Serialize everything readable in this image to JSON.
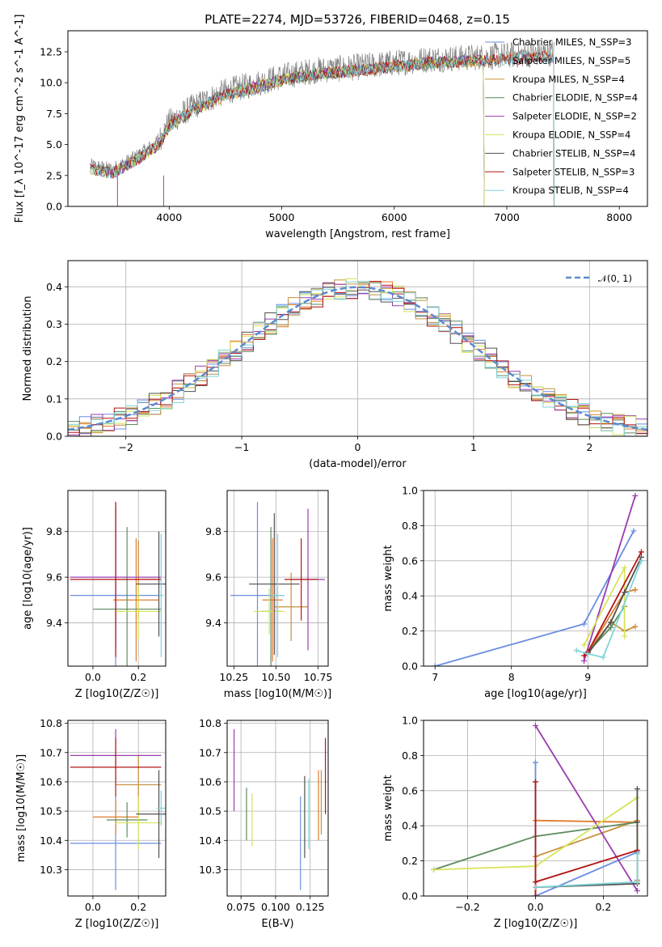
{
  "title": "PLATE=2274, MJD=53726, FIBERID=0468, z=0.15",
  "colors": [
    "#6a8ee0",
    "#e07c2e",
    "#c68f3a",
    "#5e8a5e",
    "#9b3bb0",
    "#d7e35a",
    "#505050",
    "#b41414",
    "#7fd3d6"
  ],
  "legend_labels": [
    "Chabrier MILES, N_SSP=3",
    "Salpeter MILES, N_SSP=5",
    "Kroupa MILES, N_SSP=4",
    "Chabrier ELODIE, N_SSP=4",
    "Salpeter ELODIE, N_SSP=2",
    "Kroupa ELODIE, N_SSP=4",
    "Chabrier STELIB, N_SSP=4",
    "Salpeter STELIB, N_SSP=3",
    "Kroupa STELIB, N_SSP=4"
  ],
  "chart_data": [
    {
      "id": "spectrum",
      "type": "line",
      "xlabel": "wavelength [Angstrom, rest frame]",
      "ylabel": "Flux [f_λ 10^-17 erg cm^-2 s^-1 A^-1]",
      "xlim": [
        3100,
        8250
      ],
      "ylim": [
        0,
        14.2
      ],
      "xticks": [
        4000,
        5000,
        6000,
        7000,
        8000
      ],
      "yticks": [
        0.0,
        2.5,
        5.0,
        7.5,
        10.0,
        12.5
      ],
      "xticklabels": [
        "4000",
        "5000",
        "6000",
        "7000",
        "8000"
      ],
      "yticklabels": [
        "0.0",
        "2.5",
        "5.0",
        "7.5",
        "10.0",
        "12.5"
      ],
      "grid": false,
      "legend": "top-right",
      "data_series": {
        "name": "data",
        "x_range": [
          3300,
          7420
        ],
        "color": "#808080"
      },
      "continuum": {
        "x": [
          3300,
          3500,
          3700,
          3900,
          4000,
          4200,
          4500,
          4800,
          5000,
          5300,
          5600,
          6000,
          6300,
          6600,
          7000,
          7400
        ],
        "y": [
          3.3,
          3.0,
          4.0,
          5.2,
          6.8,
          8.0,
          9.3,
          10.0,
          10.5,
          11.0,
          11.2,
          11.6,
          11.9,
          12.0,
          12.2,
          12.4
        ]
      },
      "model_cutoffs": [
        7420,
        7420,
        6800,
        6800,
        6800,
        6800,
        7420,
        7420,
        7420
      ]
    },
    {
      "id": "residuals",
      "type": "step",
      "xlabel": "(data-model)/error",
      "ylabel": "Normed distribution",
      "xlim": [
        -2.5,
        2.5
      ],
      "ylim": [
        0,
        0.47
      ],
      "xticks": [
        -2,
        -1,
        0,
        1,
        2
      ],
      "yticks": [
        0.0,
        0.1,
        0.2,
        0.3,
        0.4
      ],
      "xticklabels": [
        "−2",
        "−1",
        "0",
        "1",
        "2"
      ],
      "yticklabels": [
        "0.0",
        "0.1",
        "0.2",
        "0.3",
        "0.4"
      ],
      "grid": true,
      "legend": "top-right",
      "reference_label": "𝒩(0, 1)",
      "reference_color": "#5b8ad0",
      "bin_width": 0.1
    },
    {
      "id": "age-vs-Z",
      "type": "errorbar",
      "xlabel": "Z [log10(Z/Z☉)]",
      "ylabel": "age [log10(age/yr)]",
      "xlim": [
        -0.11,
        0.32
      ],
      "ylim": [
        9.21,
        9.98
      ],
      "xticks": [
        0.0,
        0.2
      ],
      "yticks": [
        9.4,
        9.6,
        9.8
      ],
      "xticklabels": [
        "0.0",
        "0.2"
      ],
      "yticklabels": [
        "9.4",
        "9.6",
        "9.8"
      ],
      "grid": true,
      "points": [
        {
          "x": 0.1,
          "y": 9.52,
          "xerr": 0.2,
          "yerr": 0.41
        },
        {
          "x": 0.19,
          "y": 9.5,
          "xerr": 0.1,
          "yerr": 0.27
        },
        {
          "x": 0.2,
          "y": 9.59,
          "xerr": 0.1,
          "yerr": 0.17
        },
        {
          "x": 0.15,
          "y": 9.46,
          "xerr": 0.15,
          "yerr": 0.36
        },
        {
          "x": 0.1,
          "y": 9.6,
          "xerr": 0.2,
          "yerr": 0.31
        },
        {
          "x": 0.2,
          "y": 9.45,
          "xerr": 0.1,
          "yerr": 0.12
        },
        {
          "x": 0.29,
          "y": 9.57,
          "xerr": 0.1,
          "yerr": 0.23
        },
        {
          "x": 0.1,
          "y": 9.59,
          "xerr": 0.2,
          "yerr": 0.34
        },
        {
          "x": 0.3,
          "y": 9.52,
          "xerr": 0.01,
          "yerr": 0.27
        }
      ]
    },
    {
      "id": "age-vs-mass",
      "type": "errorbar",
      "xlabel": "mass [log10(M/M☉)]",
      "ylabel": "",
      "xlim": [
        10.21,
        10.81
      ],
      "ylim": [
        9.21,
        9.98
      ],
      "xticks": [
        10.25,
        10.5,
        10.75
      ],
      "yticks": [
        9.4,
        9.6,
        9.8
      ],
      "xticklabels": [
        "10.25",
        "10.50",
        "10.75"
      ],
      "yticklabels": [
        "9.4",
        "9.6",
        "9.8"
      ],
      "grid": true,
      "points": [
        {
          "x": 10.39,
          "y": 9.52,
          "xerr": 0.16,
          "yerr": 0.41
        },
        {
          "x": 10.48,
          "y": 9.5,
          "xerr": 0.06,
          "yerr": 0.27
        },
        {
          "x": 10.59,
          "y": 9.47,
          "xerr": 0.1,
          "yerr": 0.15
        },
        {
          "x": 10.47,
          "y": 9.45,
          "xerr": 0.06,
          "yerr": 0.37
        },
        {
          "x": 10.69,
          "y": 9.59,
          "xerr": 0.1,
          "yerr": 0.31
        },
        {
          "x": 10.46,
          "y": 9.45,
          "xerr": 0.09,
          "yerr": 0.1
        },
        {
          "x": 10.49,
          "y": 9.57,
          "xerr": 0.15,
          "yerr": 0.31
        },
        {
          "x": 10.65,
          "y": 9.59,
          "xerr": 0.1,
          "yerr": 0.18
        },
        {
          "x": 10.51,
          "y": 9.52,
          "xerr": 0.04,
          "yerr": 0.27
        }
      ]
    },
    {
      "id": "weight-vs-age",
      "type": "line",
      "xlabel": "age [log10(age/yr)]",
      "ylabel": "mass weight",
      "xlim": [
        6.85,
        9.78
      ],
      "ylim": [
        0,
        1.0
      ],
      "xticks": [
        7,
        8,
        9
      ],
      "yticks": [
        0.0,
        0.2,
        0.4,
        0.6,
        0.8,
        1.0
      ],
      "xticklabels": [
        "7",
        "8",
        "9"
      ],
      "yticklabels": [
        "0.0",
        "0.2",
        "0.4",
        "0.6",
        "0.8",
        "1.0"
      ],
      "grid": true,
      "series": [
        {
          "x": [
            7.0,
            8.95,
            9.6
          ],
          "y": [
            0.0,
            0.24,
            0.77
          ]
        },
        {
          "x": [
            9.0,
            9.48,
            9.62
          ],
          "y": [
            0.08,
            0.42,
            0.435
          ]
        },
        {
          "x": [
            9.0,
            9.3,
            9.48,
            9.62
          ],
          "y": [
            0.08,
            0.25,
            0.2,
            0.225
          ]
        },
        {
          "x": [
            9.0,
            9.3,
            9.48
          ],
          "y": [
            0.08,
            0.22,
            0.34
          ]
        },
        {
          "x": [
            8.95,
            9.62
          ],
          "y": [
            0.03,
            0.97
          ]
        },
        {
          "x": [
            8.95,
            9.48,
            9.48
          ],
          "y": [
            0.12,
            0.56,
            0.17
          ]
        },
        {
          "x": [
            9.0,
            9.3,
            9.48,
            9.7
          ],
          "y": [
            0.07,
            0.25,
            0.42,
            0.62
          ]
        },
        {
          "x": [
            8.95,
            9.0,
            9.7
          ],
          "y": [
            0.06,
            0.08,
            0.65
          ]
        },
        {
          "x": [
            8.85,
            9.0,
            9.2,
            9.7
          ],
          "y": [
            0.09,
            0.07,
            0.05,
            0.6
          ]
        }
      ]
    },
    {
      "id": "mass-vs-Z",
      "type": "errorbar",
      "xlabel": "Z [log10(Z/Z☉)]",
      "ylabel": "mass [log10(M/M☉)]",
      "xlim": [
        -0.11,
        0.32
      ],
      "ylim": [
        10.21,
        10.81
      ],
      "xticks": [
        0.0,
        0.2
      ],
      "yticks": [
        10.3,
        10.4,
        10.5,
        10.6,
        10.7,
        10.8
      ],
      "xticklabels": [
        "0.0",
        "0.2"
      ],
      "yticklabels": [
        "10.3",
        "10.4",
        "10.5",
        "10.6",
        "10.7",
        "10.8"
      ],
      "grid": true,
      "points": [
        {
          "x": 0.1,
          "y": 10.39,
          "xerr": 0.2,
          "yerr": 0.16
        },
        {
          "x": 0.1,
          "y": 10.48,
          "xerr": 0.1,
          "yerr": 0.06
        },
        {
          "x": 0.2,
          "y": 10.59,
          "xerr": 0.1,
          "yerr": 0.1
        },
        {
          "x": 0.15,
          "y": 10.47,
          "xerr": 0.09,
          "yerr": 0.06
        },
        {
          "x": 0.1,
          "y": 10.69,
          "xerr": 0.2,
          "yerr": 0.09
        },
        {
          "x": 0.2,
          "y": 10.46,
          "xerr": 0.1,
          "yerr": 0.09
        },
        {
          "x": 0.29,
          "y": 10.49,
          "xerr": 0.1,
          "yerr": 0.15
        },
        {
          "x": 0.1,
          "y": 10.65,
          "xerr": 0.2,
          "yerr": 0.1
        },
        {
          "x": 0.3,
          "y": 10.51,
          "xerr": 0.02,
          "yerr": 0.06
        }
      ]
    },
    {
      "id": "mass-vs-EBV",
      "type": "errorbar",
      "xlabel": "E(B-V)",
      "ylabel": "",
      "xlim": [
        0.065,
        0.138
      ],
      "ylim": [
        10.21,
        10.81
      ],
      "xticks": [
        0.075,
        0.1,
        0.125
      ],
      "yticks": [
        10.3,
        10.4,
        10.5,
        10.6,
        10.7,
        10.8
      ],
      "xticklabels": [
        "0.075",
        "0.100",
        "0.125"
      ],
      "yticklabels": [
        "10.3",
        "10.4",
        "10.5",
        "10.6",
        "10.7",
        "10.8"
      ],
      "grid": true,
      "points": [
        {
          "x": 0.118,
          "y": 10.39,
          "xerr": 0,
          "yerr": 0.16
        },
        {
          "x": 0.131,
          "y": 10.52,
          "xerr": 0,
          "yerr": 0.12
        },
        {
          "x": 0.133,
          "y": 10.53,
          "xerr": 0,
          "yerr": 0.11
        },
        {
          "x": 0.079,
          "y": 10.49,
          "xerr": 0,
          "yerr": 0.09
        },
        {
          "x": 0.07,
          "y": 10.64,
          "xerr": 0,
          "yerr": 0.14
        },
        {
          "x": 0.083,
          "y": 10.47,
          "xerr": 0,
          "yerr": 0.09
        },
        {
          "x": 0.121,
          "y": 10.48,
          "xerr": 0,
          "yerr": 0.14
        },
        {
          "x": 0.136,
          "y": 10.62,
          "xerr": 0,
          "yerr": 0.13
        },
        {
          "x": 0.124,
          "y": 10.49,
          "xerr": 0,
          "yerr": 0.12
        }
      ]
    },
    {
      "id": "weight-vs-Z",
      "type": "line",
      "xlabel": "Z [log10(Z/Z☉)]",
      "ylabel": "mass weight",
      "xlim": [
        -0.33,
        0.33
      ],
      "ylim": [
        0,
        1.0
      ],
      "xticks": [
        -0.2,
        0.0,
        0.2
      ],
      "yticks": [
        0.0,
        0.2,
        0.4,
        0.6,
        0.8,
        1.0
      ],
      "xticklabels": [
        "−0.2",
        "0.0",
        "0.2"
      ],
      "yticklabels": [
        "0.0",
        "0.2",
        "0.4",
        "0.6",
        "0.8",
        "1.0"
      ],
      "grid": true,
      "series": [
        {
          "x": [
            0.0,
            0.0,
            0.3,
            0.3
          ],
          "y": [
            0.76,
            0.0,
            0.25,
            0.09
          ]
        },
        {
          "x": [
            0.0,
            0.3,
            0.3
          ],
          "y": [
            0.43,
            0.42,
            0.09
          ]
        },
        {
          "x": [
            0.0,
            0.0,
            0.3
          ],
          "y": [
            0.0,
            0.225,
            0.43
          ]
        },
        {
          "x": [
            -0.3,
            0.0,
            0.3
          ],
          "y": [
            0.15,
            0.34,
            0.42
          ]
        },
        {
          "x": [
            0.0,
            0.3
          ],
          "y": [
            0.97,
            0.03
          ]
        },
        {
          "x": [
            -0.3,
            0.0,
            0.3,
            0.3
          ],
          "y": [
            0.15,
            0.17,
            0.56,
            0.08
          ]
        },
        {
          "x": [
            0.0,
            0.3,
            0.3,
            0.3
          ],
          "y": [
            0.05,
            0.07,
            0.42,
            0.61
          ]
        },
        {
          "x": [
            0.0,
            0.0,
            0.0,
            0.3
          ],
          "y": [
            0.65,
            0.0,
            0.08,
            0.26
          ]
        },
        {
          "x": [
            0.0,
            0.3,
            0.3
          ],
          "y": [
            0.05,
            0.08,
            0.24
          ]
        }
      ]
    }
  ]
}
